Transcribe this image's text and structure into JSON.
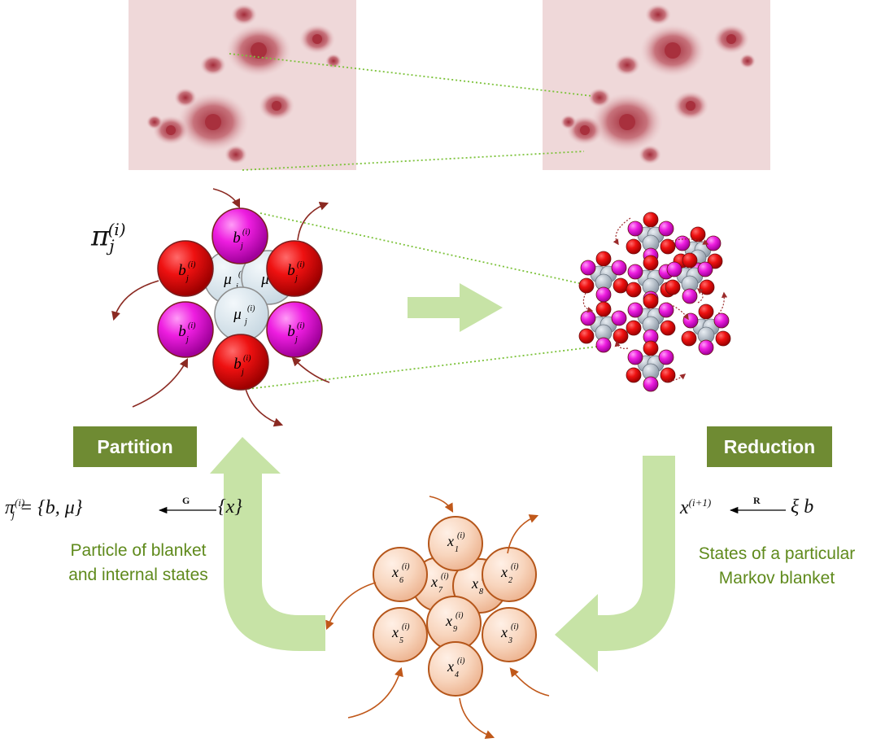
{
  "labels": {
    "partition": "Partition",
    "reduction": "Reduction"
  },
  "captions": {
    "left_line1": "Particle of blanket",
    "left_line2": "and internal states",
    "right_line1": "States of a particular",
    "right_line2": "Markov blanket"
  },
  "formulas": {
    "particle_symbol": "π",
    "particle_sub": "j",
    "particle_sup": "(i)",
    "partition_lhs": "π",
    "partition_set": "= {b, μ}",
    "operator_G": "G",
    "partition_rhs": "{x}",
    "reduction_lhs": "x",
    "reduction_sup": "(i+1)",
    "operator_R": "R",
    "reduction_rhs": "ξ b"
  },
  "particle": {
    "blanket_label": "b",
    "internal_label": "μ",
    "index_sup": "(i)",
    "index_sub": "j"
  },
  "states": {
    "label": "x",
    "index_sup": "(i)",
    "nodes": [
      "1",
      "2",
      "3",
      "4",
      "5",
      "6",
      "7",
      "8",
      "9"
    ]
  },
  "colors": {
    "red": "#e30613",
    "magenta": "#e40fd6",
    "internal": "#d8e6ee",
    "state": "#f6d2b8",
    "state_border": "#b5561a",
    "green_arrow": "#c7e3a6",
    "label_bg": "#6f8b33",
    "caption": "#5f8a1c",
    "fractal_bg": "#efd8d9",
    "fractal": "#b3505a"
  }
}
